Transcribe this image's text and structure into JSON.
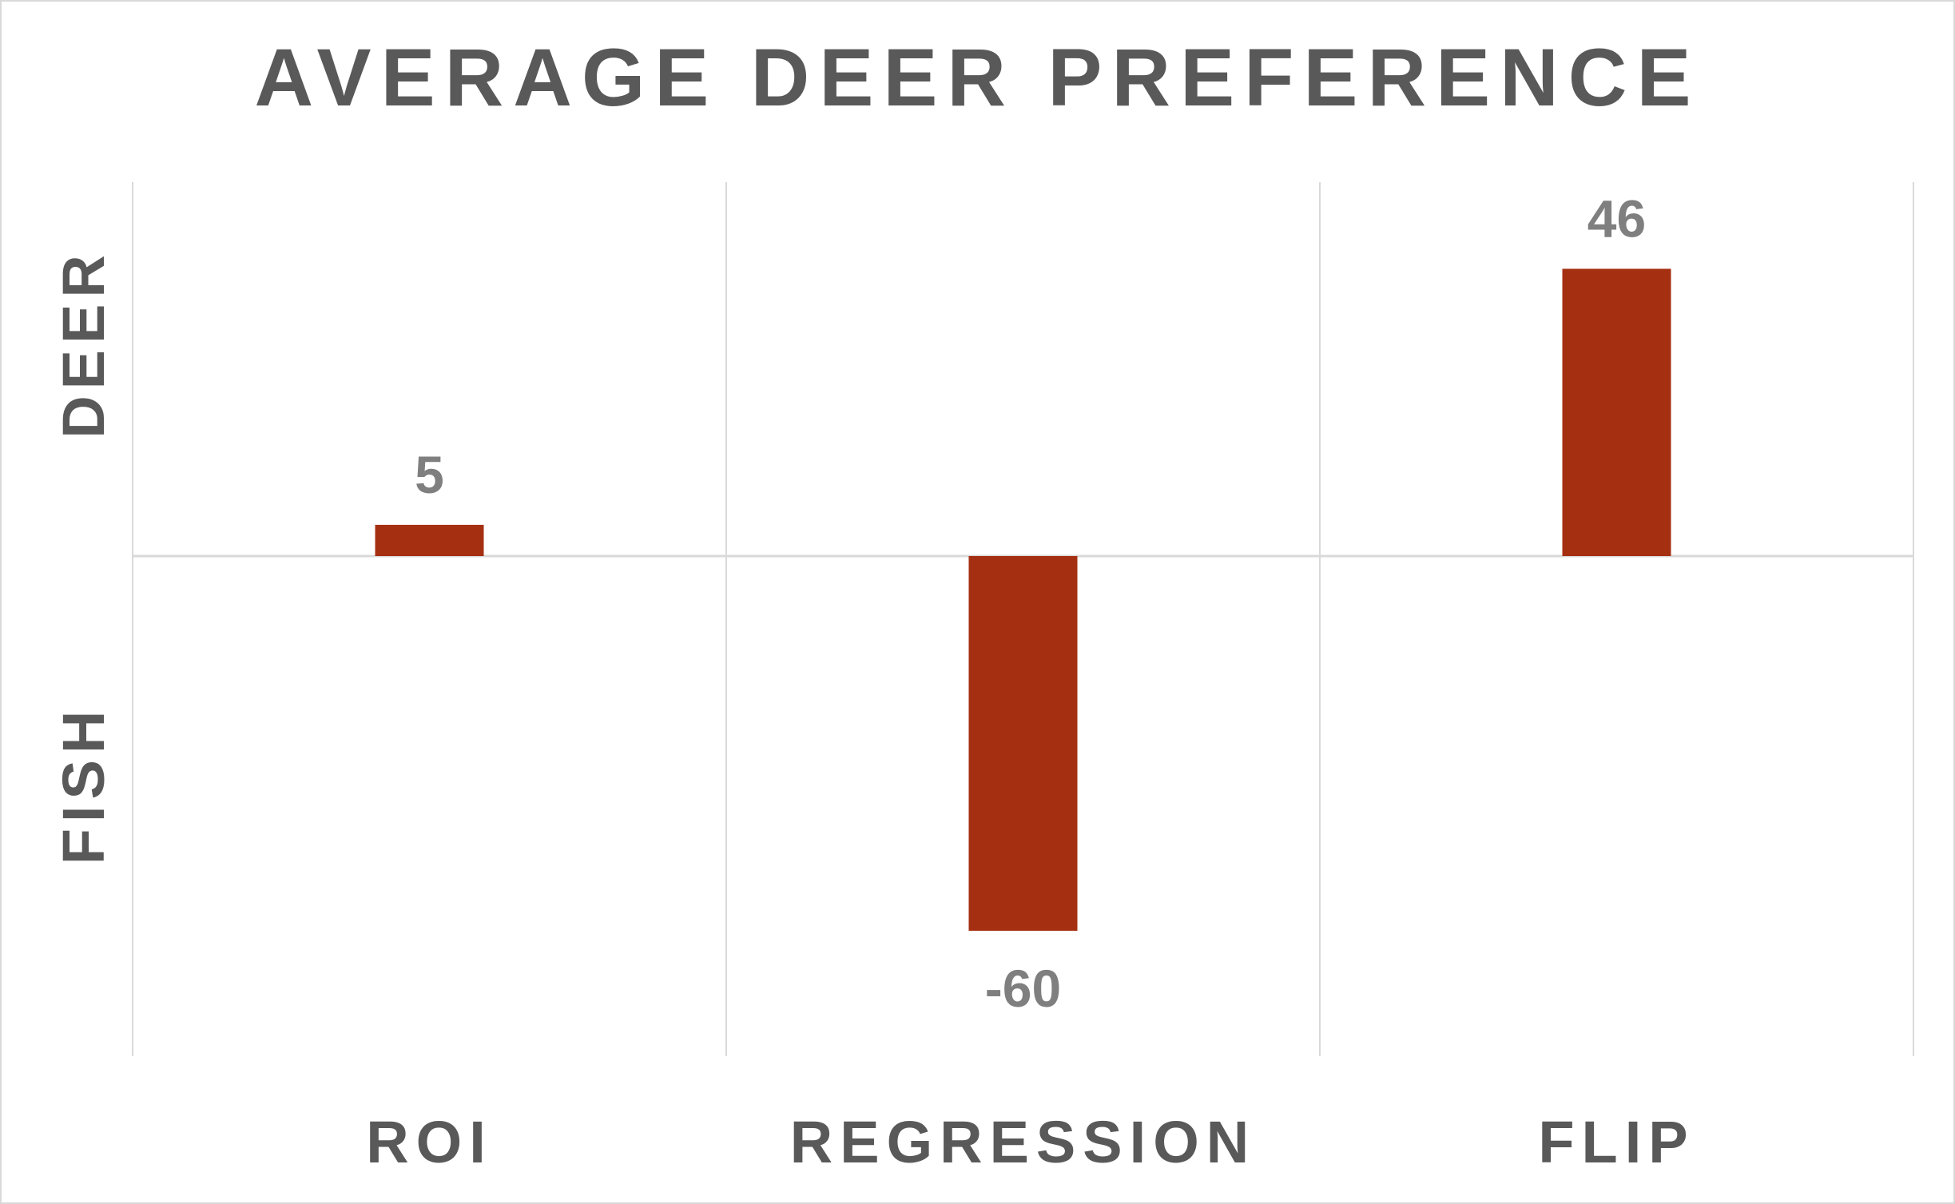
{
  "chart_data": {
    "type": "bar",
    "title": "AVERAGE DEER PREFERENCE",
    "categories": [
      "ROI",
      "REGRESSION",
      "FLIP"
    ],
    "values": [
      5,
      -60,
      46
    ],
    "data_labels": [
      "5",
      "-60",
      "46"
    ],
    "y_axis_labels": {
      "positive": "DEER",
      "negative": "FISH"
    },
    "ylim": [
      -72,
      66
    ],
    "grid": true,
    "legend": "none",
    "bar_color": "#a52f11",
    "text_color": "#595959",
    "data_label_color": "#7f7f7f",
    "grid_color": "#d9d9d9"
  }
}
